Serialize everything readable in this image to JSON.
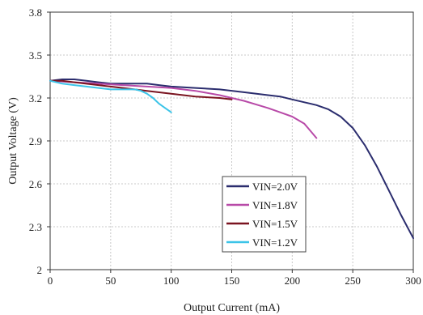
{
  "chart_data": {
    "type": "line",
    "xlabel": "Output Current (mA)",
    "ylabel": "Output Voltage (V)",
    "xlim": [
      0,
      300
    ],
    "ylim": [
      2,
      3.8
    ],
    "xticks": [
      "0",
      "50",
      "100",
      "150",
      "200",
      "250",
      "300"
    ],
    "yticks": [
      "2",
      "2.3",
      "2.6",
      "2.9",
      "3.2",
      "3.5",
      "3.8"
    ],
    "grid": true,
    "legend_position": "bottom-center",
    "series": [
      {
        "name": "VIN=2.0V",
        "color": "#2b2d6e",
        "x": [
          0,
          10,
          20,
          30,
          40,
          50,
          60,
          70,
          80,
          90,
          100,
          120,
          140,
          160,
          180,
          190,
          200,
          210,
          220,
          230,
          240,
          250,
          260,
          270,
          280,
          290,
          300
        ],
        "y": [
          3.32,
          3.33,
          3.33,
          3.32,
          3.31,
          3.3,
          3.3,
          3.3,
          3.3,
          3.29,
          3.28,
          3.27,
          3.26,
          3.24,
          3.22,
          3.21,
          3.19,
          3.17,
          3.15,
          3.12,
          3.07,
          2.99,
          2.87,
          2.72,
          2.55,
          2.38,
          2.22
        ]
      },
      {
        "name": "VIN=1.8V",
        "color": "#b84aa8",
        "x": [
          0,
          20,
          40,
          60,
          80,
          100,
          120,
          140,
          160,
          180,
          190,
          200,
          210,
          215,
          220
        ],
        "y": [
          3.32,
          3.31,
          3.3,
          3.29,
          3.28,
          3.27,
          3.25,
          3.22,
          3.18,
          3.13,
          3.1,
          3.07,
          3.02,
          2.97,
          2.92
        ]
      },
      {
        "name": "VIN=1.5V",
        "color": "#7a1420",
        "x": [
          0,
          10,
          20,
          40,
          60,
          80,
          100,
          120,
          140,
          150
        ],
        "y": [
          3.32,
          3.32,
          3.31,
          3.29,
          3.27,
          3.25,
          3.23,
          3.21,
          3.2,
          3.19
        ]
      },
      {
        "name": "VIN=1.2V",
        "color": "#3cc4e8",
        "x": [
          0,
          10,
          20,
          30,
          40,
          50,
          60,
          70,
          75,
          80,
          85,
          90,
          95,
          100
        ],
        "y": [
          3.32,
          3.3,
          3.29,
          3.28,
          3.27,
          3.26,
          3.26,
          3.26,
          3.25,
          3.23,
          3.2,
          3.16,
          3.13,
          3.1
        ]
      }
    ]
  }
}
